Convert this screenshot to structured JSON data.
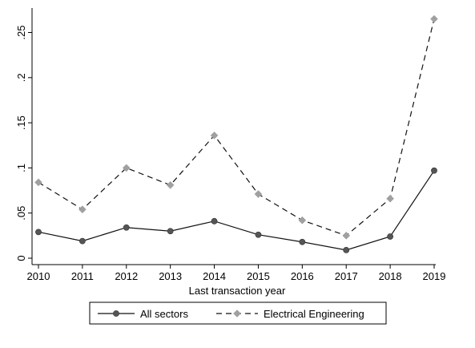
{
  "chart_data": {
    "type": "line",
    "title": "",
    "xlabel": "Last transaction year",
    "ylabel": "",
    "x": [
      2010,
      2011,
      2012,
      2013,
      2014,
      2015,
      2016,
      2017,
      2018,
      2019
    ],
    "xticks": [
      "2010",
      "2011",
      "2012",
      "2013",
      "2014",
      "2015",
      "2016",
      "2017",
      "2018",
      "2019"
    ],
    "yticks": [
      {
        "value": 0,
        "label": "0"
      },
      {
        "value": 0.05,
        "label": ".05"
      },
      {
        "value": 0.1,
        "label": ".1"
      },
      {
        "value": 0.15,
        "label": ".15"
      },
      {
        "value": 0.2,
        "label": ".2"
      },
      {
        "value": 0.25,
        "label": ".25"
      }
    ],
    "xlim": [
      2010,
      2019
    ],
    "ylim": [
      0,
      0.27
    ],
    "grid": false,
    "legend_position": "bottom",
    "series": [
      {
        "name": "All sectors",
        "values": [
          0.029,
          0.019,
          0.034,
          0.03,
          0.041,
          0.026,
          0.018,
          0.009,
          0.024,
          0.097
        ],
        "color": "#111111",
        "marker_color": "#555555",
        "line_style": "solid",
        "marker": "circle"
      },
      {
        "name": "Electrical Engineering",
        "values": [
          0.084,
          0.054,
          0.1,
          0.081,
          0.136,
          0.071,
          0.042,
          0.025,
          0.066,
          0.265
        ],
        "color": "#111111",
        "marker_color": "#a0a0a0",
        "line_style": "dashed",
        "marker": "diamond"
      }
    ]
  }
}
